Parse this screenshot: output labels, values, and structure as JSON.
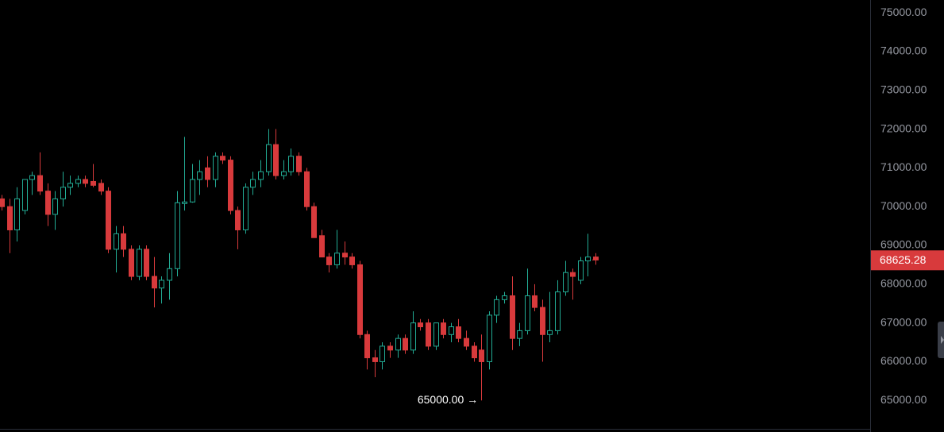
{
  "chart_data": {
    "type": "candlestick",
    "up_color": "#22ab94",
    "down_color": "#d83a3c",
    "open": [
      70200,
      70000,
      69400,
      69900,
      70700,
      70800,
      70400,
      69800,
      70200,
      70500,
      70600,
      70700,
      70650,
      70600,
      70400,
      68900,
      69300,
      68900,
      68200,
      68900,
      68200,
      67900,
      68100,
      68400,
      70080,
      70120,
      70700,
      71000,
      70700,
      71300,
      71200,
      69900,
      69400,
      70500,
      70700,
      70900,
      71600,
      70800,
      70900,
      71300,
      70900,
      70000,
      69250,
      68700,
      68500,
      68800,
      68700,
      68500,
      66700,
      66100,
      66000,
      66400,
      66300,
      66600,
      66300,
      67000,
      67000,
      66400,
      67000,
      66700,
      66900,
      66600,
      66400,
      66300,
      66000,
      67200,
      67600,
      67700,
      66600,
      66800,
      67700,
      67400,
      66700,
      66800,
      67800,
      68300,
      68100,
      68600,
      68700
    ],
    "high": [
      70300,
      70200,
      70500,
      70700,
      70900,
      71400,
      70600,
      70400,
      70900,
      70800,
      70800,
      70800,
      71100,
      70700,
      70500,
      69500,
      69500,
      69000,
      69000,
      69000,
      68700,
      68200,
      68800,
      70400,
      71800,
      71100,
      71200,
      71300,
      71400,
      71400,
      71300,
      70000,
      70600,
      70900,
      71200,
      72000,
      72000,
      71200,
      71500,
      71400,
      71000,
      70100,
      69400,
      68800,
      69400,
      69100,
      68800,
      68600,
      66800,
      66300,
      66500,
      66500,
      66700,
      66700,
      67300,
      67100,
      67100,
      67000,
      67100,
      67000,
      67100,
      66800,
      66500,
      66700,
      67300,
      67700,
      67800,
      68200,
      67000,
      68400,
      68000,
      67600,
      67800,
      68100,
      68600,
      68400,
      68700,
      69300,
      68800
    ],
    "low": [
      69900,
      68800,
      69100,
      69800,
      70300,
      70300,
      69500,
      69400,
      70000,
      70300,
      70500,
      70500,
      70500,
      70300,
      68800,
      68300,
      68700,
      68100,
      68100,
      68100,
      67400,
      67500,
      67600,
      68200,
      69900,
      70100,
      70300,
      70500,
      70500,
      71100,
      69800,
      68900,
      69300,
      70300,
      70500,
      70800,
      70700,
      70700,
      70800,
      70800,
      69900,
      69200,
      68700,
      68300,
      68400,
      68500,
      68400,
      66600,
      65800,
      65600,
      65800,
      66100,
      66100,
      66200,
      66200,
      66800,
      66300,
      66300,
      66600,
      66500,
      66500,
      66300,
      66000,
      65000,
      65800,
      67000,
      67500,
      66300,
      66400,
      66700,
      67300,
      66000,
      66500,
      66700,
      67700,
      67600,
      68000,
      68200,
      68500
    ],
    "close": [
      70000,
      69400,
      70200,
      70700,
      70800,
      70400,
      69800,
      70200,
      70500,
      70600,
      70700,
      70600,
      70550,
      70400,
      68900,
      69300,
      68900,
      68200,
      68900,
      68200,
      67900,
      68100,
      68400,
      70100,
      70120,
      70700,
      70900,
      70700,
      71300,
      71200,
      69900,
      69400,
      70500,
      70700,
      70900,
      71600,
      70800,
      70900,
      71300,
      70900,
      70000,
      69200,
      68700,
      68500,
      68800,
      68700,
      68500,
      66700,
      66100,
      66000,
      66400,
      66300,
      66600,
      66300,
      67000,
      66900,
      66400,
      67000,
      66700,
      66900,
      66600,
      66400,
      66100,
      66000,
      67200,
      67600,
      67700,
      66600,
      66800,
      67700,
      67400,
      66700,
      66800,
      67800,
      68300,
      68200,
      68600,
      68700,
      68625.28
    ],
    "ylim": [
      64780,
      75330
    ],
    "yticks": [
      {
        "value": 65000,
        "label": "65000.00"
      },
      {
        "value": 66000,
        "label": "66000.00"
      },
      {
        "value": 67000,
        "label": "67000.00"
      },
      {
        "value": 68000,
        "label": "68000.00"
      },
      {
        "value": 69000,
        "label": "69000.00"
      },
      {
        "value": 70000,
        "label": "70000.00"
      },
      {
        "value": 71000,
        "label": "71000.00"
      },
      {
        "value": 72000,
        "label": "72000.00"
      },
      {
        "value": 73000,
        "label": "73000.00"
      },
      {
        "value": 74000,
        "label": "74000.00"
      },
      {
        "value": 75000,
        "label": "75000.00"
      }
    ],
    "last_price": {
      "value": 68625.28,
      "label": "68625.28"
    },
    "low_annotation": {
      "value": 65000,
      "label": "65000.00 →"
    }
  }
}
